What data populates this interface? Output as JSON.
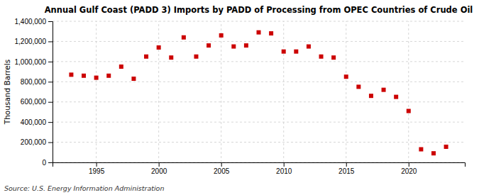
{
  "chart_data": {
    "type": "scatter",
    "title": "Annual Gulf Coast (PADD 3) Imports by PADD of Processing from OPEC Countries of Crude Oil",
    "ylabel": "Thousand Barrels",
    "source": "Source: U.S. Energy Information Administration",
    "color": "#cc0000",
    "marker": "square",
    "grid": true,
    "x": [
      1993,
      1994,
      1995,
      1996,
      1997,
      1998,
      1999,
      2000,
      2001,
      2002,
      2003,
      2004,
      2005,
      2006,
      2007,
      2008,
      2009,
      2010,
      2011,
      2012,
      2013,
      2014,
      2015,
      2016,
      2017,
      2018,
      2019,
      2020,
      2021,
      2022,
      2023
    ],
    "values": [
      870000,
      860000,
      840000,
      860000,
      950000,
      830000,
      1050000,
      1140000,
      1040000,
      1240000,
      1050000,
      1160000,
      1260000,
      1150000,
      1160000,
      1290000,
      1280000,
      1100000,
      1100000,
      1150000,
      1050000,
      1040000,
      850000,
      750000,
      660000,
      720000,
      650000,
      510000,
      130000,
      90000,
      155000
    ],
    "xlim": [
      1991.5,
      2024.5
    ],
    "xticks": [
      1995,
      2000,
      2005,
      2010,
      2015,
      2020
    ],
    "ylim": [
      0,
      1400000
    ],
    "yticks": [
      0,
      {
        "value": 200000,
        "label": "200,000"
      },
      {
        "value": 400000,
        "label": "400,000"
      },
      {
        "value": 600000,
        "label": "600,000"
      },
      {
        "value": 800000,
        "label": "800,000"
      },
      {
        "value": 1000000,
        "label": "1,000,000"
      },
      {
        "value": 1200000,
        "label": "1,200,000"
      },
      {
        "value": 1400000,
        "label": "1,400,000"
      }
    ]
  }
}
